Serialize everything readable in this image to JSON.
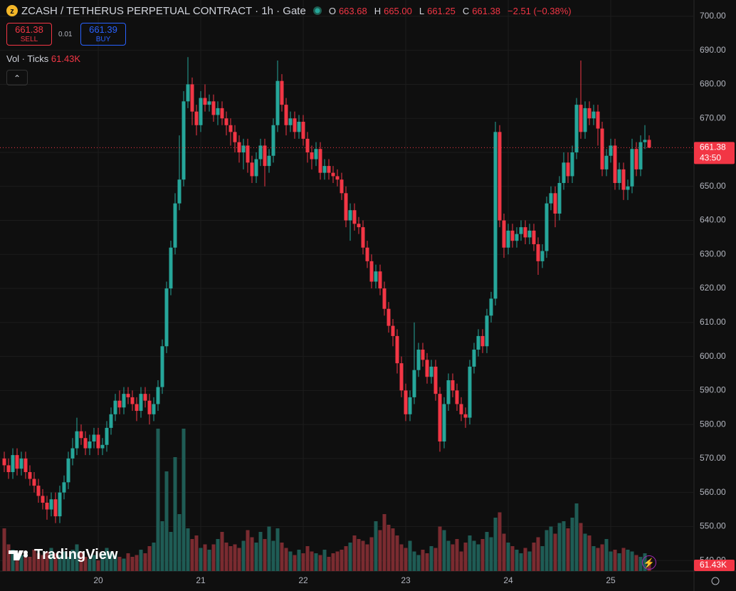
{
  "header": {
    "symbol": "ZCASH / TETHERUS PERPETUAL CONTRACT · 1h · Gate",
    "o_key": "O",
    "o": "663.68",
    "h_key": "H",
    "h": "665.00",
    "l_key": "L",
    "l": "661.25",
    "c_key": "C",
    "c": "661.38",
    "change": "−2.51 (−0.38%)"
  },
  "trade": {
    "sell_price": "661.38",
    "sell": "SELL",
    "spread": "0.01",
    "buy_price": "661.39",
    "buy": "BUY"
  },
  "volume_legend": {
    "label": "Vol · Ticks",
    "value": "61.43K"
  },
  "price_tag": {
    "price": "661.38",
    "countdown": "43:50"
  },
  "volume_tag": "61.43K",
  "brand": "TradingView",
  "chart_data": {
    "type": "candlestick",
    "categories": [
      null,
      null,
      null,
      null,
      null,
      null,
      null,
      null,
      null,
      null,
      null,
      null,
      null,
      null,
      null,
      null,
      null,
      null,
      null,
      null,
      null,
      null,
      "20",
      null,
      null,
      null,
      null,
      null,
      null,
      null,
      null,
      null,
      null,
      null,
      null,
      null,
      null,
      null,
      null,
      null,
      null,
      null,
      null,
      null,
      null,
      null,
      "21",
      null,
      null,
      null,
      null,
      null,
      null,
      null,
      null,
      null,
      null,
      null,
      null,
      null,
      null,
      null,
      null,
      null,
      null,
      null,
      null,
      null,
      null,
      null,
      "22",
      null,
      null,
      null,
      null,
      null,
      null,
      null,
      null,
      null,
      null,
      null,
      null,
      null,
      null,
      null,
      null,
      null,
      null,
      null,
      null,
      null,
      null,
      null,
      "23",
      null,
      null,
      null,
      null,
      null,
      null,
      null,
      null,
      null,
      null,
      null,
      null,
      null,
      null,
      null,
      null,
      null,
      null,
      null,
      null,
      null,
      null,
      null,
      "24",
      null,
      null,
      null,
      null,
      null,
      null,
      null,
      null,
      null,
      null,
      null,
      null,
      null,
      null,
      null,
      null,
      null,
      null,
      null,
      null,
      null,
      null,
      null,
      "25",
      null,
      null,
      null,
      null,
      null,
      null,
      null,
      null,
      null
    ],
    "open": [
      570,
      568,
      566,
      571,
      567,
      570,
      566,
      564,
      562,
      559,
      557,
      555,
      558,
      553,
      560,
      563,
      570,
      573,
      578,
      576,
      573,
      575,
      577,
      573,
      574,
      579,
      583,
      587,
      585,
      589,
      588,
      586,
      584,
      589,
      587,
      583,
      586,
      591,
      603,
      620,
      632,
      645,
      652,
      675,
      680,
      672,
      668,
      676,
      674,
      675,
      671,
      673,
      670,
      668,
      666,
      663,
      660,
      662,
      657,
      653,
      658,
      662,
      656,
      659,
      668,
      681,
      674,
      668,
      670,
      666,
      669,
      664,
      660,
      658,
      661,
      654,
      656,
      654,
      653,
      652,
      648,
      640,
      643,
      639,
      638,
      632,
      628,
      622,
      625,
      620,
      614,
      609,
      606,
      598,
      590,
      583,
      588,
      596,
      602,
      599,
      594,
      597,
      589,
      575,
      586,
      593,
      590,
      586,
      583,
      582,
      597,
      602,
      606,
      603,
      612,
      617,
      666,
      640,
      632,
      637,
      634,
      636,
      638,
      635,
      637,
      633,
      628,
      631,
      645,
      648,
      642,
      651,
      657,
      653,
      660,
      674,
      666,
      673,
      670,
      672,
      667,
      655,
      659,
      662,
      651,
      655,
      649,
      650,
      661,
      655,
      663,
      663.68
    ],
    "high": [
      572,
      570,
      573,
      573,
      572,
      572,
      568,
      566,
      564,
      561,
      559,
      560,
      560,
      562,
      565,
      572,
      576,
      582,
      580,
      578,
      577,
      579,
      579,
      576,
      581,
      585,
      589,
      590,
      591,
      591,
      590,
      588,
      591,
      591,
      589,
      588,
      593,
      605,
      622,
      634,
      648,
      665,
      678,
      688,
      682,
      674,
      678,
      680,
      677,
      677,
      675,
      675,
      672,
      670,
      668,
      665,
      664,
      664,
      659,
      660,
      664,
      664,
      661,
      670,
      687,
      683,
      676,
      672,
      672,
      671,
      671,
      666,
      662,
      663,
      663,
      658,
      658,
      656,
      655,
      654,
      650,
      645,
      645,
      641,
      640,
      634,
      630,
      627,
      627,
      622,
      616,
      611,
      608,
      600,
      592,
      590,
      610,
      604,
      604,
      601,
      599,
      599,
      591,
      588,
      595,
      595,
      592,
      588,
      585,
      599,
      604,
      608,
      608,
      614,
      619,
      669,
      668,
      642,
      639,
      639,
      638,
      640,
      640,
      639,
      639,
      635,
      633,
      647,
      650,
      650,
      653,
      660,
      660,
      662,
      676,
      687,
      675,
      675,
      674,
      674,
      669,
      661,
      664,
      664,
      657,
      657,
      652,
      664,
      663,
      665,
      668,
      665
    ],
    "low": [
      566,
      564,
      564,
      565,
      565,
      564,
      562,
      560,
      557,
      555,
      552,
      553,
      551,
      551,
      558,
      561,
      568,
      571,
      574,
      571,
      571,
      573,
      571,
      571,
      572,
      577,
      581,
      583,
      583,
      586,
      584,
      581,
      582,
      585,
      580,
      581,
      584,
      589,
      601,
      618,
      630,
      643,
      650,
      673,
      668,
      665,
      666,
      672,
      672,
      669,
      668,
      668,
      665,
      662,
      660,
      657,
      655,
      654,
      651,
      651,
      656,
      650,
      654,
      657,
      666,
      672,
      665,
      666,
      664,
      664,
      662,
      657,
      655,
      656,
      652,
      652,
      652,
      651,
      650,
      646,
      638,
      634,
      637,
      636,
      630,
      626,
      620,
      620,
      618,
      612,
      607,
      603,
      595,
      588,
      581,
      581,
      586,
      594,
      597,
      592,
      592,
      587,
      572,
      573,
      584,
      588,
      584,
      581,
      579,
      580,
      595,
      600,
      601,
      601,
      610,
      615,
      638,
      629,
      630,
      632,
      632,
      634,
      633,
      633,
      631,
      624,
      626,
      629,
      643,
      638,
      640,
      649,
      651,
      651,
      658,
      664,
      664,
      668,
      668,
      662,
      653,
      653,
      657,
      649,
      649,
      646,
      646,
      648,
      653,
      653,
      661,
      661.25
    ],
    "close": [
      568,
      566,
      571,
      567,
      570,
      566,
      564,
      562,
      559,
      557,
      555,
      558,
      553,
      560,
      563,
      570,
      573,
      578,
      576,
      573,
      575,
      577,
      573,
      574,
      579,
      583,
      587,
      585,
      589,
      588,
      586,
      584,
      589,
      587,
      583,
      586,
      591,
      603,
      620,
      632,
      645,
      652,
      675,
      680,
      672,
      668,
      676,
      674,
      675,
      671,
      673,
      670,
      668,
      666,
      663,
      660,
      662,
      657,
      653,
      658,
      662,
      656,
      659,
      668,
      681,
      674,
      668,
      670,
      666,
      669,
      664,
      660,
      658,
      661,
      654,
      656,
      654,
      653,
      652,
      648,
      640,
      643,
      639,
      638,
      632,
      628,
      622,
      625,
      620,
      614,
      609,
      606,
      598,
      590,
      583,
      588,
      596,
      602,
      599,
      594,
      597,
      589,
      575,
      586,
      593,
      590,
      586,
      583,
      582,
      597,
      602,
      606,
      603,
      612,
      617,
      666,
      640,
      632,
      637,
      634,
      636,
      638,
      635,
      637,
      633,
      628,
      631,
      645,
      648,
      642,
      651,
      657,
      653,
      660,
      674,
      666,
      673,
      670,
      672,
      667,
      655,
      659,
      662,
      651,
      655,
      649,
      650,
      661,
      655,
      663,
      663.68,
      661.38
    ],
    "volume": [
      240,
      150,
      120,
      100,
      90,
      110,
      80,
      120,
      100,
      90,
      110,
      130,
      100,
      90,
      110,
      80,
      120,
      150,
      110,
      80,
      70,
      90,
      60,
      100,
      130,
      110,
      90,
      80,
      70,
      100,
      80,
      90,
      120,
      100,
      140,
      160,
      800,
      280,
      560,
      220,
      640,
      320,
      800,
      240,
      180,
      200,
      130,
      150,
      120,
      150,
      180,
      220,
      160,
      140,
      150,
      130,
      170,
      230,
      190,
      160,
      220,
      180,
      250,
      170,
      240,
      160,
      130,
      110,
      90,
      120,
      100,
      140,
      110,
      100,
      90,
      120,
      80,
      100,
      110,
      120,
      140,
      160,
      200,
      180,
      170,
      150,
      190,
      280,
      230,
      320,
      260,
      240,
      200,
      150,
      130,
      170,
      110,
      90,
      120,
      100,
      140,
      130,
      250,
      230,
      170,
      150,
      180,
      110,
      160,
      200,
      170,
      150,
      180,
      220,
      190,
      300,
      330,
      210,
      160,
      140,
      120,
      100,
      130,
      110,
      160,
      190,
      140,
      230,
      250,
      210,
      270,
      280,
      240,
      300,
      380,
      270,
      210,
      200,
      140,
      130,
      150,
      180,
      110,
      120,
      100,
      130,
      120,
      110,
      90,
      80,
      100,
      61.43
    ],
    "ylim": [
      536.9,
      704.8
    ],
    "yticks": [
      {
        "value": 700,
        "label": "700.00"
      },
      {
        "value": 690,
        "label": "690.00"
      },
      {
        "value": 680,
        "label": "680.00"
      },
      {
        "value": 670,
        "label": "670.00"
      },
      {
        "value": 660,
        "label": "660.00"
      },
      {
        "value": 650,
        "label": "650.00"
      },
      {
        "value": 640,
        "label": "640.00"
      },
      {
        "value": 630,
        "label": "630.00"
      },
      {
        "value": 620,
        "label": "620.00"
      },
      {
        "value": 610,
        "label": "610.00"
      },
      {
        "value": 600,
        "label": "600.00"
      },
      {
        "value": 590,
        "label": "590.00"
      },
      {
        "value": 580,
        "label": "580.00"
      },
      {
        "value": 570,
        "label": "570.00"
      },
      {
        "value": 560,
        "label": "560.00"
      },
      {
        "value": 550,
        "label": "550.00"
      },
      {
        "value": 540,
        "label": "540.00"
      }
    ],
    "up_color": "#26a69a",
    "down_color": "#f23645",
    "up_volume_color": "#1f5c55",
    "down_volume_color": "#7a2b30",
    "grid": true
  }
}
